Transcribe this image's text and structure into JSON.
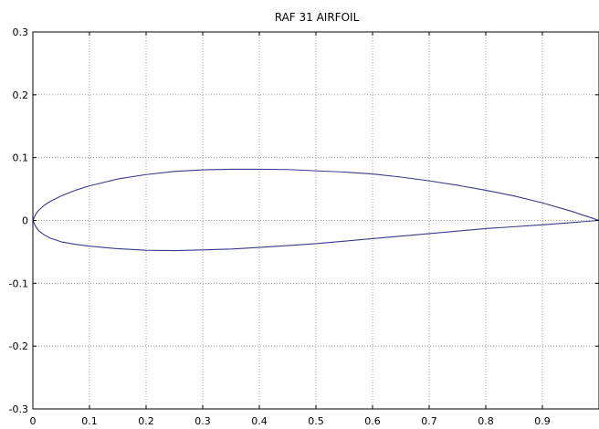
{
  "chart_data": {
    "type": "line",
    "title": "RAF 31 AIRFOIL",
    "xlabel": "",
    "ylabel": "",
    "xlim": [
      0,
      1
    ],
    "ylim": [
      -0.3,
      0.3
    ],
    "x_ticks": [
      0,
      0.1,
      0.2,
      0.3,
      0.4,
      0.5,
      0.6,
      0.7,
      0.8,
      0.9
    ],
    "x_tick_labels": [
      "0",
      "0.1",
      "0.2",
      "0.3",
      "0.4",
      "0.5",
      "0.6",
      "0.7",
      "0.8",
      "0.9"
    ],
    "y_ticks": [
      -0.3,
      -0.2,
      -0.1,
      0,
      0.1,
      0.2,
      0.3
    ],
    "y_tick_labels": [
      "-0.3",
      "-0.2",
      "-0.1",
      "0",
      "0.1",
      "0.2",
      "0.3"
    ],
    "grid": true,
    "line_color": "#3a3a8c",
    "series": [
      {
        "x": [
          1.0,
          0.95,
          0.9,
          0.85,
          0.8,
          0.75,
          0.7,
          0.65,
          0.6,
          0.55,
          0.5,
          0.45,
          0.4,
          0.35,
          0.3,
          0.25,
          0.2,
          0.15,
          0.1,
          0.075,
          0.05,
          0.03,
          0.02,
          0.01,
          0.005,
          0.0
        ],
        "y": [
          0.0,
          0.015,
          0.028,
          0.039,
          0.048,
          0.056,
          0.063,
          0.069,
          0.074,
          0.077,
          0.079,
          0.081,
          0.0815,
          0.0815,
          0.0805,
          0.078,
          0.073,
          0.066,
          0.055,
          0.048,
          0.039,
          0.03,
          0.024,
          0.016,
          0.01,
          0.0
        ]
      },
      {
        "x": [
          0.0,
          0.005,
          0.01,
          0.02,
          0.03,
          0.05,
          0.075,
          0.1,
          0.15,
          0.2,
          0.25,
          0.3,
          0.35,
          0.4,
          0.45,
          0.5,
          0.55,
          0.6,
          0.65,
          0.7,
          0.75,
          0.8,
          0.85,
          0.9,
          0.95,
          1.0
        ],
        "y": [
          0.0,
          -0.01,
          -0.016,
          -0.023,
          -0.028,
          -0.034,
          -0.038,
          -0.041,
          -0.045,
          -0.0475,
          -0.048,
          -0.047,
          -0.0455,
          -0.043,
          -0.04,
          -0.037,
          -0.033,
          -0.029,
          -0.025,
          -0.021,
          -0.017,
          -0.013,
          -0.01,
          -0.007,
          -0.0035,
          0.0
        ]
      }
    ]
  }
}
